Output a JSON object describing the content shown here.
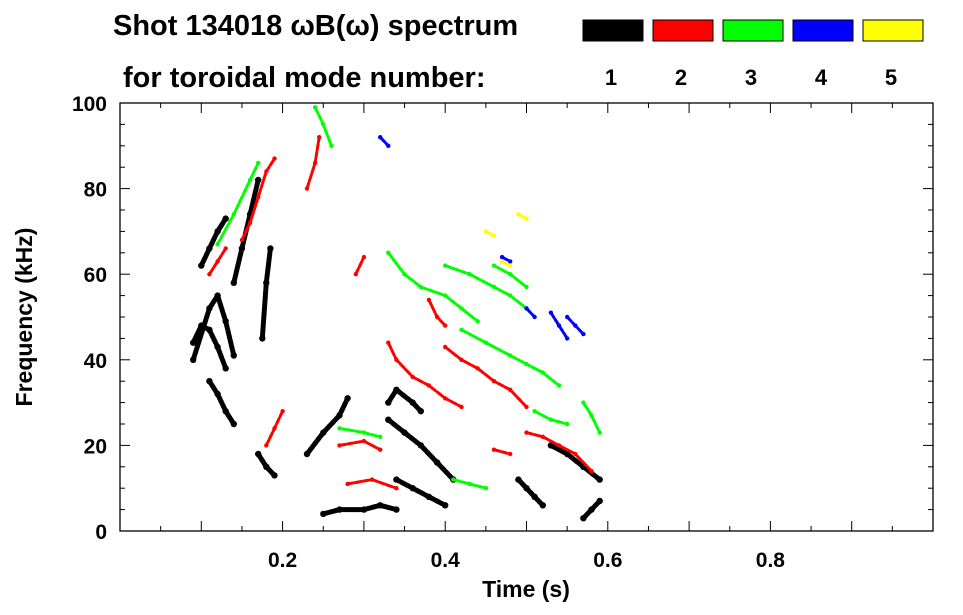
{
  "title_line1": "Shot 134018 ωB(ω) spectrum",
  "title_line2": "for toroidal mode number:",
  "chart_data": {
    "type": "heatmap",
    "title": "Shot 134018 ωB(ω) spectrum",
    "subtitle": "for toroidal mode number:",
    "xlabel": "Time (s)",
    "ylabel": "Frequency (kHz)",
    "xlim": [
      0.0,
      1.0
    ],
    "ylim": [
      0,
      100
    ],
    "x_ticks": [
      {
        "value": 0.2,
        "label": "0.2"
      },
      {
        "value": 0.4,
        "label": "0.4"
      },
      {
        "value": 0.6,
        "label": "0.6"
      },
      {
        "value": 0.8,
        "label": "0.8"
      }
    ],
    "y_ticks": [
      {
        "value": 0,
        "label": "0"
      },
      {
        "value": 20,
        "label": "20"
      },
      {
        "value": 40,
        "label": "40"
      },
      {
        "value": 60,
        "label": "60"
      },
      {
        "value": 80,
        "label": "80"
      },
      {
        "value": 100,
        "label": "100"
      }
    ],
    "legend_position": "top-right",
    "legend": [
      {
        "mode": "1",
        "color": "#000000"
      },
      {
        "mode": "2",
        "color": "#ff0000"
      },
      {
        "mode": "3",
        "color": "#00ff00"
      },
      {
        "mode": "4",
        "color": "#0000ff"
      },
      {
        "mode": "5",
        "color": "#ffff00"
      }
    ],
    "series": [
      {
        "mode": "1",
        "color": "#000000",
        "segments": [
          [
            [
              0.09,
              44
            ],
            [
              0.1,
              48
            ],
            [
              0.11,
              47
            ],
            [
              0.12,
              43
            ],
            [
              0.13,
              38
            ]
          ],
          [
            [
              0.09,
              40
            ],
            [
              0.11,
              52
            ],
            [
              0.12,
              55
            ],
            [
              0.13,
              49
            ],
            [
              0.14,
              41
            ]
          ],
          [
            [
              0.1,
              62
            ],
            [
              0.11,
              66
            ],
            [
              0.12,
              70
            ],
            [
              0.13,
              73
            ]
          ],
          [
            [
              0.11,
              35
            ],
            [
              0.12,
              32
            ],
            [
              0.13,
              28
            ],
            [
              0.14,
              25
            ]
          ],
          [
            [
              0.14,
              58
            ],
            [
              0.15,
              66
            ],
            [
              0.16,
              74
            ],
            [
              0.17,
              82
            ]
          ],
          [
            [
              0.175,
              45
            ],
            [
              0.18,
              58
            ],
            [
              0.185,
              66
            ]
          ],
          [
            [
              0.17,
              18
            ],
            [
              0.18,
              15
            ],
            [
              0.19,
              13
            ]
          ],
          [
            [
              0.23,
              18
            ],
            [
              0.25,
              23
            ],
            [
              0.27,
              27
            ],
            [
              0.28,
              31
            ]
          ],
          [
            [
              0.25,
              4
            ],
            [
              0.27,
              5
            ],
            [
              0.3,
              5
            ],
            [
              0.32,
              6
            ],
            [
              0.34,
              5
            ]
          ],
          [
            [
              0.33,
              26
            ],
            [
              0.35,
              23
            ],
            [
              0.37,
              20
            ],
            [
              0.39,
              16
            ],
            [
              0.41,
              12
            ]
          ],
          [
            [
              0.33,
              30
            ],
            [
              0.34,
              33
            ],
            [
              0.36,
              30
            ],
            [
              0.37,
              28
            ]
          ],
          [
            [
              0.34,
              12
            ],
            [
              0.36,
              10
            ],
            [
              0.38,
              8
            ],
            [
              0.4,
              6
            ]
          ],
          [
            [
              0.49,
              12
            ],
            [
              0.5,
              10
            ],
            [
              0.51,
              8
            ],
            [
              0.52,
              6
            ]
          ],
          [
            [
              0.53,
              20
            ],
            [
              0.55,
              18
            ],
            [
              0.57,
              15
            ],
            [
              0.59,
              12
            ]
          ],
          [
            [
              0.57,
              3
            ],
            [
              0.58,
              5
            ],
            [
              0.59,
              7
            ]
          ]
        ]
      },
      {
        "mode": "2",
        "color": "#ff0000",
        "segments": [
          [
            [
              0.11,
              60
            ],
            [
              0.12,
              63
            ],
            [
              0.13,
              66
            ]
          ],
          [
            [
              0.15,
              68
            ],
            [
              0.16,
              72
            ],
            [
              0.17,
              78
            ],
            [
              0.18,
              84
            ],
            [
              0.19,
              87
            ]
          ],
          [
            [
              0.18,
              20
            ],
            [
              0.19,
              24
            ],
            [
              0.2,
              28
            ]
          ],
          [
            [
              0.23,
              80
            ],
            [
              0.24,
              86
            ],
            [
              0.245,
              92
            ]
          ],
          [
            [
              0.29,
              60
            ],
            [
              0.3,
              64
            ]
          ],
          [
            [
              0.27,
              20
            ],
            [
              0.3,
              21
            ],
            [
              0.32,
              19
            ]
          ],
          [
            [
              0.28,
              11
            ],
            [
              0.31,
              12
            ],
            [
              0.34,
              10
            ]
          ],
          [
            [
              0.33,
              44
            ],
            [
              0.34,
              40
            ],
            [
              0.36,
              36
            ],
            [
              0.38,
              34
            ],
            [
              0.4,
              31
            ],
            [
              0.42,
              29
            ]
          ],
          [
            [
              0.38,
              54
            ],
            [
              0.39,
              50
            ],
            [
              0.4,
              48
            ]
          ],
          [
            [
              0.4,
              43
            ],
            [
              0.42,
              40
            ],
            [
              0.44,
              38
            ],
            [
              0.46,
              35
            ],
            [
              0.48,
              33
            ],
            [
              0.5,
              29
            ]
          ],
          [
            [
              0.5,
              23
            ],
            [
              0.52,
              22
            ],
            [
              0.54,
              20
            ],
            [
              0.56,
              18
            ],
            [
              0.58,
              14
            ]
          ],
          [
            [
              0.46,
              19
            ],
            [
              0.48,
              18
            ]
          ]
        ]
      },
      {
        "mode": "3",
        "color": "#00ff00",
        "segments": [
          [
            [
              0.12,
              67
            ],
            [
              0.14,
              74
            ],
            [
              0.16,
              82
            ],
            [
              0.17,
              86
            ]
          ],
          [
            [
              0.24,
              99
            ],
            [
              0.25,
              95
            ],
            [
              0.26,
              90
            ]
          ],
          [
            [
              0.27,
              24
            ],
            [
              0.3,
              23
            ],
            [
              0.32,
              22
            ]
          ],
          [
            [
              0.33,
              65
            ],
            [
              0.35,
              60
            ],
            [
              0.37,
              57
            ],
            [
              0.4,
              55
            ],
            [
              0.42,
              52
            ],
            [
              0.44,
              49
            ]
          ],
          [
            [
              0.4,
              62
            ],
            [
              0.43,
              60
            ],
            [
              0.46,
              57
            ],
            [
              0.48,
              55
            ],
            [
              0.5,
              52
            ]
          ],
          [
            [
              0.42,
              47
            ],
            [
              0.45,
              44
            ],
            [
              0.48,
              41
            ],
            [
              0.5,
              39
            ],
            [
              0.52,
              37
            ],
            [
              0.54,
              34
            ]
          ],
          [
            [
              0.46,
              62
            ],
            [
              0.48,
              60
            ],
            [
              0.5,
              57
            ]
          ],
          [
            [
              0.51,
              28
            ],
            [
              0.53,
              26
            ],
            [
              0.55,
              25
            ]
          ],
          [
            [
              0.57,
              30
            ],
            [
              0.58,
              27
            ],
            [
              0.59,
              23
            ]
          ],
          [
            [
              0.41,
              12
            ],
            [
              0.43,
              11
            ],
            [
              0.45,
              10
            ]
          ]
        ]
      },
      {
        "mode": "4",
        "color": "#0000ff",
        "segments": [
          [
            [
              0.32,
              92
            ],
            [
              0.33,
              90
            ]
          ],
          [
            [
              0.47,
              64
            ],
            [
              0.48,
              63
            ]
          ],
          [
            [
              0.5,
              52
            ],
            [
              0.51,
              50
            ]
          ],
          [
            [
              0.53,
              51
            ],
            [
              0.54,
              48
            ],
            [
              0.55,
              45
            ]
          ],
          [
            [
              0.55,
              50
            ],
            [
              0.56,
              48
            ],
            [
              0.57,
              46
            ]
          ]
        ]
      },
      {
        "mode": "5",
        "color": "#ffff00",
        "segments": [
          [
            [
              0.45,
              70
            ],
            [
              0.46,
              69
            ]
          ],
          [
            [
              0.47,
              63
            ],
            [
              0.48,
              62
            ]
          ],
          [
            [
              0.49,
              74
            ],
            [
              0.5,
              73
            ]
          ]
        ]
      }
    ]
  }
}
